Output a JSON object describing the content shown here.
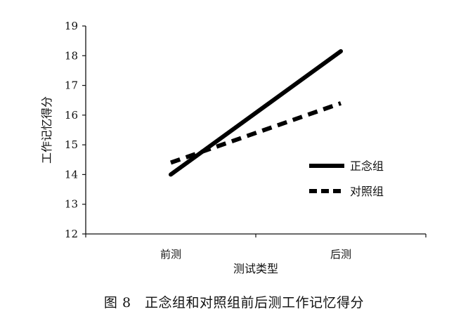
{
  "caption": "图 8　正念组和对照组前后测工作记忆得分",
  "chart_data": {
    "type": "line",
    "categories": [
      "前测",
      "后测"
    ],
    "series": [
      {
        "name": "正念组",
        "values": [
          14.0,
          18.15
        ],
        "color": "#000000",
        "style": "solid"
      },
      {
        "name": "对照组",
        "values": [
          14.4,
          16.4
        ],
        "color": "#000000",
        "style": "dashed"
      }
    ],
    "xlabel": "测试类型",
    "ylabel": "工作记忆得分",
    "ylim": [
      12,
      19
    ],
    "yticks": [
      12,
      13,
      14,
      15,
      16,
      17,
      18,
      19
    ],
    "grid": false,
    "legend_position": "right"
  }
}
